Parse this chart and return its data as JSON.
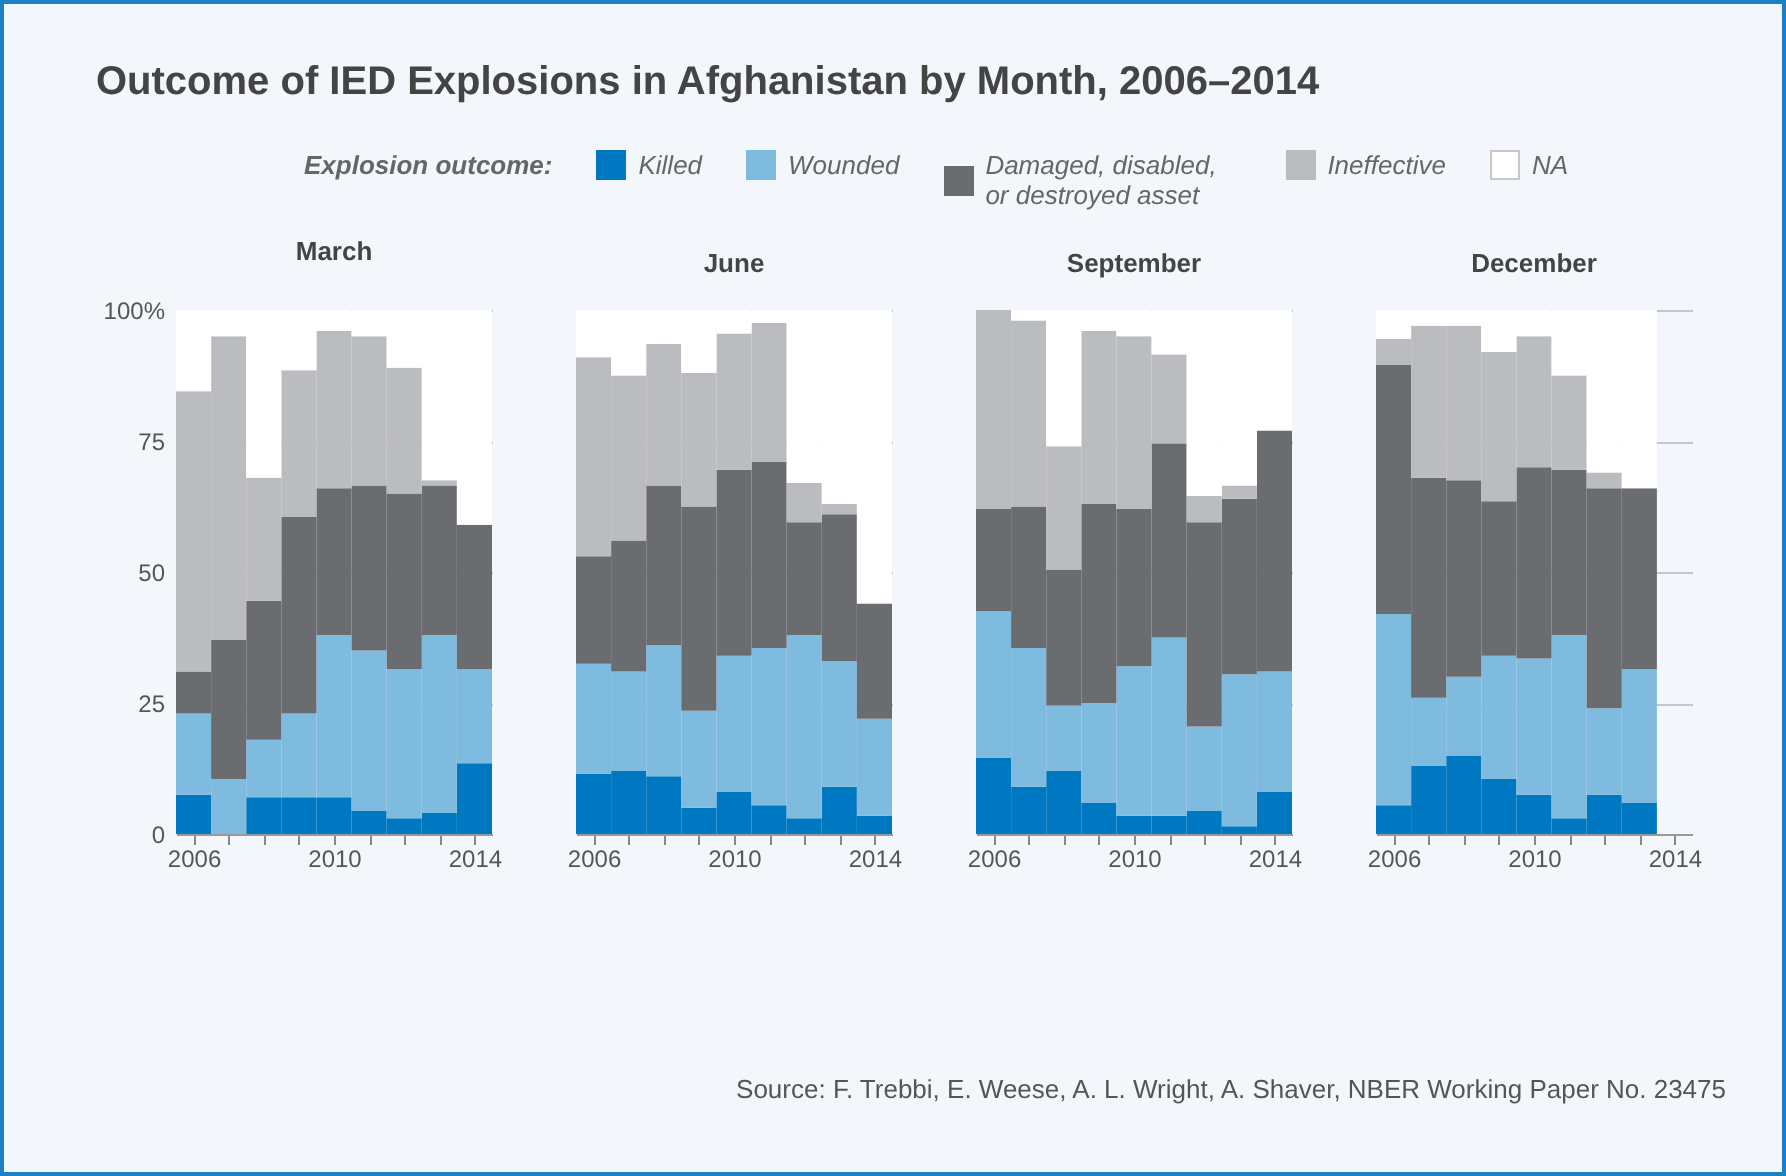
{
  "chart_data": [
    {
      "type": "bar",
      "title": "Outcome of IED Explosions in Afghanistan by Month, 2006–2014",
      "subtitle": "March",
      "legend": "top",
      "legend_title": "Explosion outcome:",
      "annotations": [
        "Source: F. Trebbi, E. Weese, A. L. Wright, A. Shaver, NBER Working Paper No. 23475"
      ],
      "stacked": true,
      "grid": "y",
      "x": [
        2006,
        2007,
        2008,
        2009,
        2010,
        2011,
        2012,
        2013,
        2014
      ],
      "xlim": [
        2005.5,
        2014.5
      ],
      "xticks": [
        2006,
        {
          "value": 2007,
          "label": null
        },
        {
          "value": 2008,
          "label": null
        },
        {
          "value": 2009,
          "label": null
        },
        2010,
        {
          "value": 2011,
          "label": null
        },
        {
          "value": 2012,
          "label": null
        },
        {
          "value": 2013,
          "label": null
        },
        2014
      ],
      "ylim": [
        0,
        100
      ],
      "yticks": [
        0,
        25,
        50,
        75,
        {
          "value": 100,
          "label": "100%"
        }
      ],
      "series": [
        {
          "name": "Killed",
          "color": "#0078c1",
          "values": [
            7.5,
            0,
            7,
            7,
            7,
            4.5,
            3,
            4,
            13.5
          ]
        },
        {
          "name": "Wounded",
          "color": "#7fbadf",
          "values": [
            15.5,
            10.5,
            11,
            16,
            31,
            30.5,
            28.5,
            34,
            18
          ]
        },
        {
          "name": "Damaged, disabled, or destroyed asset",
          "color": "#6b6c70",
          "values": [
            8,
            26.5,
            26.5,
            37.5,
            28,
            31.5,
            33.5,
            28.5,
            27.5
          ]
        },
        {
          "name": "Ineffective",
          "color": "#bbbcc0",
          "values": [
            53.5,
            58,
            23.5,
            28,
            30,
            28.5,
            24,
            1,
            0
          ]
        },
        {
          "name": "NA",
          "color": "#ffffff",
          "values": [
            15.5,
            5,
            32,
            11.5,
            4,
            5,
            11,
            32.5,
            41
          ]
        }
      ]
    },
    {
      "type": "bar",
      "subtitle": "June",
      "stacked": true,
      "grid": "y",
      "tick_labels": "x",
      "x": [
        2006,
        2007,
        2008,
        2009,
        2010,
        2011,
        2012,
        2013,
        2014
      ],
      "xlim": [
        2005.5,
        2014.5
      ],
      "xticks": [
        2006,
        {
          "value": 2007,
          "label": null
        },
        {
          "value": 2008,
          "label": null
        },
        {
          "value": 2009,
          "label": null
        },
        2010,
        {
          "value": 2011,
          "label": null
        },
        {
          "value": 2012,
          "label": null
        },
        {
          "value": 2013,
          "label": null
        },
        2014
      ],
      "ylim": [
        0,
        100
      ],
      "yticks": [
        0,
        25,
        50,
        75,
        100
      ],
      "series": [
        {
          "color": "#0078c1",
          "values": [
            11.5,
            12,
            11,
            5,
            8,
            5.5,
            3,
            9,
            3.5
          ]
        },
        {
          "color": "#7fbadf",
          "values": [
            21,
            19,
            25,
            18.5,
            26,
            30,
            35,
            24,
            18.5
          ]
        },
        {
          "color": "#6b6c70",
          "values": [
            20.5,
            25,
            30.5,
            39,
            35.5,
            35.5,
            21.5,
            28,
            22
          ]
        },
        {
          "color": "#bbbcc0",
          "values": [
            38,
            31.5,
            27,
            25.5,
            26,
            26.5,
            7.5,
            2,
            0
          ]
        },
        {
          "color": "#ffffff",
          "values": [
            9,
            12.5,
            6.5,
            12,
            4.5,
            2.5,
            33,
            37,
            56
          ]
        }
      ]
    },
    {
      "type": "bar",
      "subtitle": "September",
      "stacked": true,
      "grid": "y",
      "tick_labels": "x",
      "x": [
        2006,
        2007,
        2008,
        2009,
        2010,
        2011,
        2012,
        2013,
        2014
      ],
      "xlim": [
        2005.5,
        2014.5
      ],
      "xticks": [
        2006,
        {
          "value": 2007,
          "label": null
        },
        {
          "value": 2008,
          "label": null
        },
        {
          "value": 2009,
          "label": null
        },
        2010,
        {
          "value": 2011,
          "label": null
        },
        {
          "value": 2012,
          "label": null
        },
        {
          "value": 2013,
          "label": null
        },
        2014
      ],
      "ylim": [
        0,
        100
      ],
      "yticks": [
        0,
        25,
        50,
        75,
        100
      ],
      "series": [
        {
          "color": "#0078c1",
          "values": [
            14.5,
            9,
            12,
            6,
            3.5,
            3.5,
            4.5,
            1.5,
            8
          ]
        },
        {
          "color": "#7fbadf",
          "values": [
            28,
            26.5,
            12.5,
            19,
            28.5,
            34,
            16,
            29,
            23
          ]
        },
        {
          "color": "#6b6c70",
          "values": [
            19.5,
            27,
            26,
            38,
            30,
            37,
            39,
            33.5,
            46
          ]
        },
        {
          "color": "#bbbcc0",
          "values": [
            38,
            35.5,
            23.5,
            33,
            33,
            17,
            5,
            2.5,
            0
          ]
        },
        {
          "color": "#ffffff",
          "values": [
            0,
            2,
            26,
            4,
            5,
            8.5,
            35.5,
            33.5,
            23
          ]
        }
      ]
    },
    {
      "type": "bar",
      "subtitle": "December",
      "stacked": true,
      "grid": "y",
      "tick_labels": "x",
      "x": [
        2006,
        2007,
        2008,
        2009,
        2010,
        2011,
        2012,
        2013
      ],
      "xlim": [
        2005.5,
        2014.5
      ],
      "xticks": [
        2006,
        {
          "value": 2007,
          "label": null
        },
        {
          "value": 2008,
          "label": null
        },
        {
          "value": 2009,
          "label": null
        },
        2010,
        {
          "value": 2011,
          "label": null
        },
        {
          "value": 2012,
          "label": null
        },
        {
          "value": 2013,
          "label": null
        },
        2014
      ],
      "ylim": [
        0,
        100
      ],
      "yticks": [
        0,
        25,
        50,
        75,
        100
      ],
      "series": [
        {
          "color": "#0078c1",
          "values": [
            5.5,
            13,
            15,
            10.5,
            7.5,
            3,
            7.5,
            6
          ]
        },
        {
          "color": "#7fbadf",
          "values": [
            36.5,
            13,
            15,
            23.5,
            26,
            35,
            16.5,
            25.5
          ]
        },
        {
          "color": "#6b6c70",
          "values": [
            47.5,
            42,
            37.5,
            29.5,
            36.5,
            31.5,
            42,
            34.5
          ]
        },
        {
          "color": "#bbbcc0",
          "values": [
            5,
            29,
            29.5,
            28.5,
            25,
            18,
            3,
            0
          ]
        },
        {
          "color": "#ffffff",
          "values": [
            5.5,
            3,
            3,
            8,
            5,
            12.5,
            31,
            34
          ]
        }
      ]
    }
  ]
}
